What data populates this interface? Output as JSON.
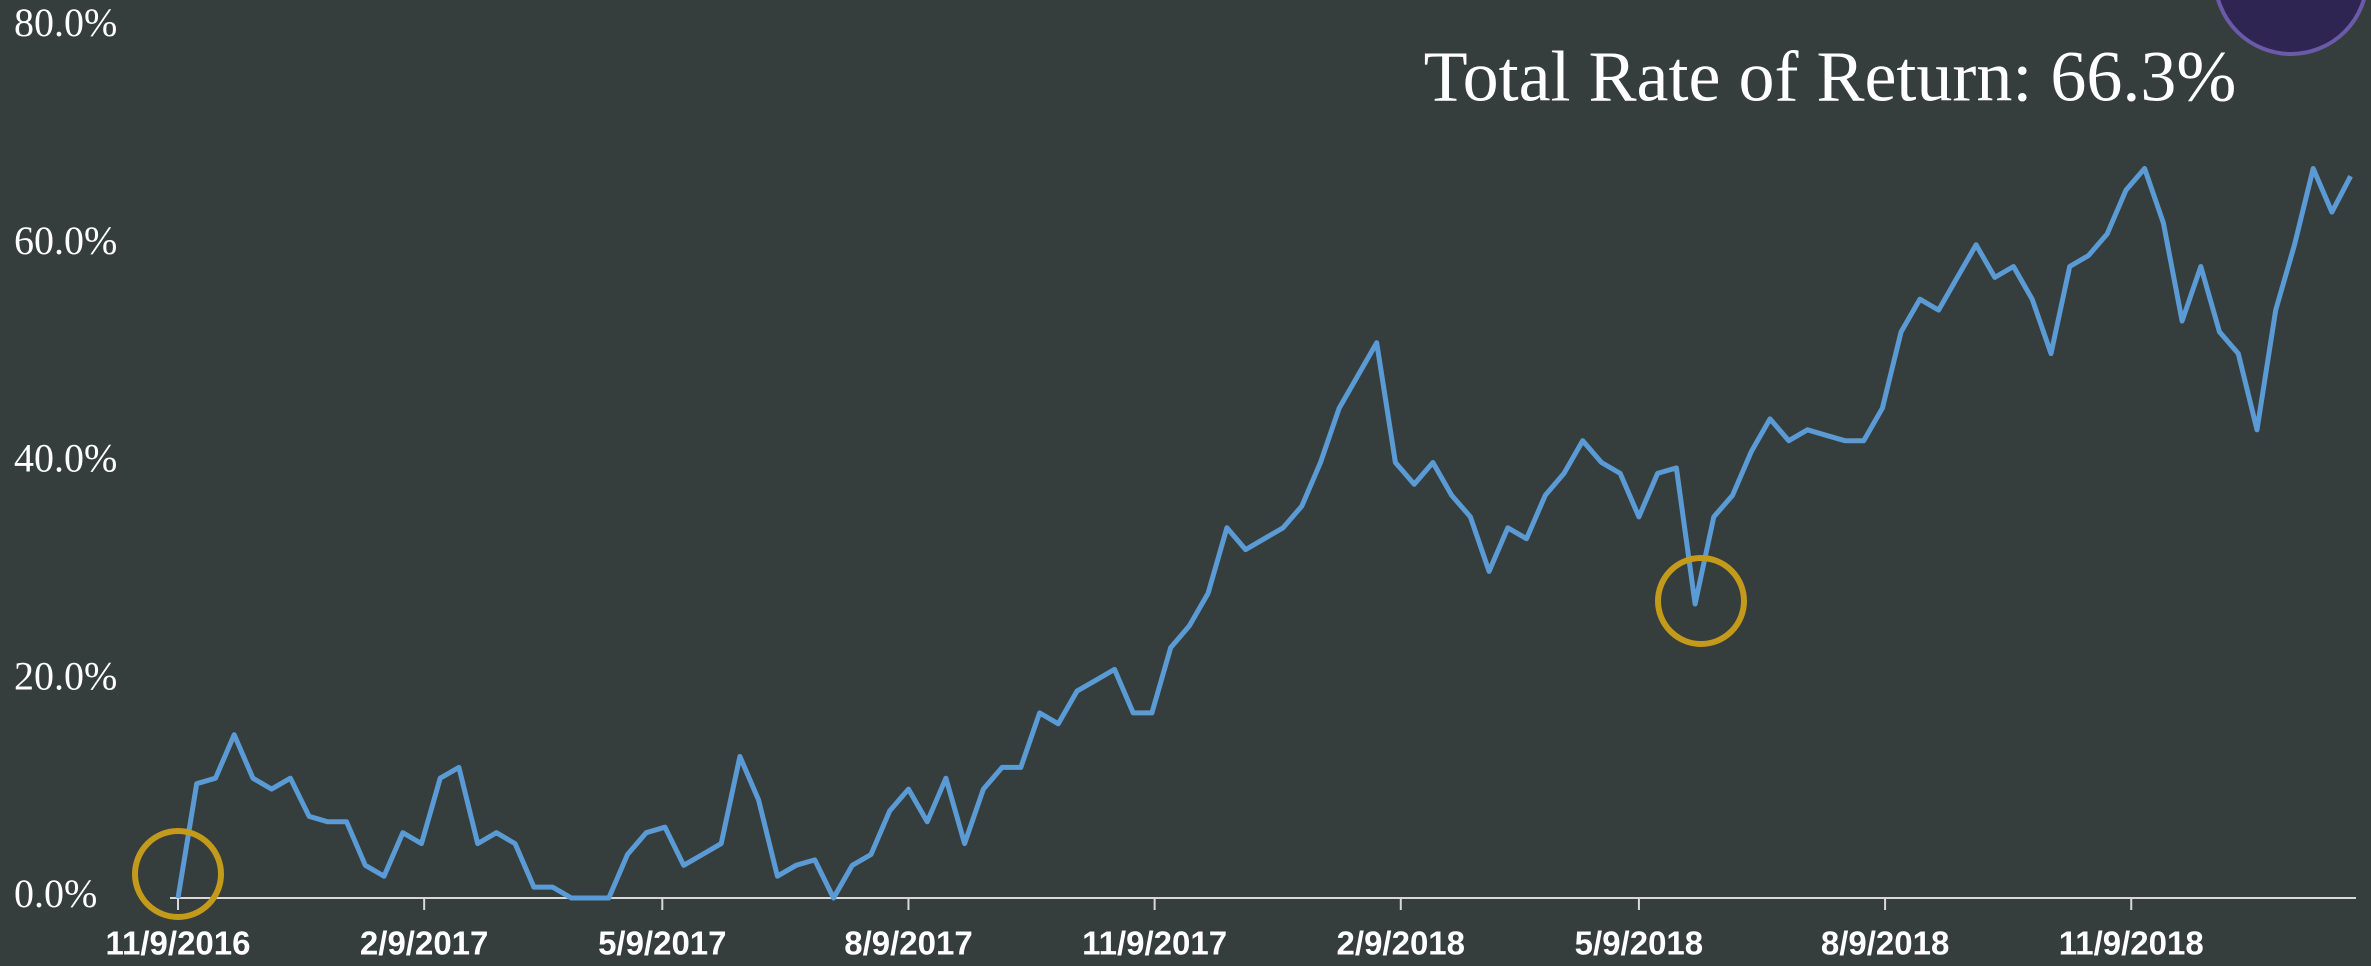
{
  "chart_data": {
    "type": "line",
    "annotation": "Total Rate of Return: 66.3%",
    "x": [
      "11/9/2016",
      "11/16/2016",
      "11/23/2016",
      "11/30/2016",
      "12/7/2016",
      "12/14/2016",
      "12/21/2016",
      "12/28/2016",
      "1/4/2017",
      "1/11/2017",
      "1/18/2017",
      "1/25/2017",
      "2/1/2017",
      "2/8/2017",
      "2/15/2017",
      "2/22/2017",
      "3/1/2017",
      "3/8/2017",
      "3/15/2017",
      "3/22/2017",
      "3/29/2017",
      "4/5/2017",
      "4/12/2017",
      "4/19/2017",
      "4/26/2017",
      "5/3/2017",
      "5/10/2017",
      "5/17/2017",
      "5/24/2017",
      "5/31/2017",
      "6/7/2017",
      "6/14/2017",
      "6/21/2017",
      "6/28/2017",
      "7/5/2017",
      "7/12/2017",
      "7/19/2017",
      "7/26/2017",
      "8/2/2017",
      "8/9/2017",
      "8/16/2017",
      "8/23/2017",
      "8/30/2017",
      "9/6/2017",
      "9/13/2017",
      "9/20/2017",
      "9/27/2017",
      "10/4/2017",
      "10/11/2017",
      "10/18/2017",
      "10/25/2017",
      "11/1/2017",
      "11/8/2017",
      "11/15/2017",
      "11/22/2017",
      "11/29/2017",
      "12/6/2017",
      "12/13/2017",
      "12/20/2017",
      "12/27/2017",
      "1/3/2018",
      "1/10/2018",
      "1/17/2018",
      "1/24/2018",
      "1/31/2018",
      "2/7/2018",
      "2/14/2018",
      "2/21/2018",
      "2/28/2018",
      "3/7/2018",
      "3/14/2018",
      "3/21/2018",
      "3/28/2018",
      "4/4/2018",
      "4/11/2018",
      "4/18/2018",
      "4/25/2018",
      "5/2/2018",
      "5/9/2018",
      "5/16/2018",
      "5/23/2018",
      "5/30/2018",
      "6/6/2018",
      "6/13/2018",
      "6/20/2018",
      "6/27/2018",
      "7/4/2018",
      "7/11/2018",
      "7/18/2018",
      "7/25/2018",
      "8/1/2018",
      "8/8/2018",
      "8/15/2018",
      "8/22/2018",
      "8/29/2018",
      "9/5/2018",
      "9/12/2018",
      "9/19/2018",
      "9/26/2018",
      "10/3/2018",
      "10/10/2018",
      "10/17/2018",
      "10/24/2018",
      "10/31/2018",
      "11/7/2018",
      "11/14/2018",
      "11/21/2018",
      "11/28/2018",
      "12/5/2018",
      "12/12/2018",
      "12/19/2018",
      "12/26/2018",
      "1/2/2019",
      "1/9/2019",
      "1/16/2019",
      "1/23/2019",
      "1/30/2019"
    ],
    "series": [
      {
        "color": "#5b9bd5",
        "values": [
          0,
          10.5,
          11,
          15,
          11,
          10,
          11,
          7.5,
          7,
          7,
          3,
          2,
          6,
          5,
          11,
          12,
          5,
          6,
          5,
          1,
          1,
          0,
          0,
          0,
          4,
          6,
          6.5,
          3,
          4,
          5,
          13,
          9,
          2,
          3,
          3.5,
          0,
          3,
          4,
          8,
          10,
          7,
          11,
          5,
          10,
          12,
          12,
          17,
          16,
          19,
          20,
          21,
          17,
          17,
          23,
          25,
          28,
          34,
          32,
          33,
          34,
          36,
          40,
          45,
          48,
          51,
          40,
          38,
          40,
          37,
          35,
          30,
          34,
          33,
          37,
          39,
          42,
          40,
          39,
          35,
          39,
          39.5,
          27,
          35,
          37,
          41,
          44,
          42,
          43,
          42.5,
          42,
          42,
          45,
          52,
          55,
          54,
          57,
          60,
          57,
          58,
          55,
          50,
          58,
          59,
          61,
          65,
          67,
          62,
          53,
          58,
          52,
          50,
          43,
          54,
          60,
          67,
          63,
          66.3
        ]
      }
    ],
    "xlim": [
      "11/9/2016",
      "2/1/2019"
    ],
    "xticks": [
      "11/9/2016",
      "2/9/2017",
      "5/9/2017",
      "8/9/2017",
      "11/9/2017",
      "2/9/2018",
      "5/9/2018",
      "8/9/2018",
      "11/9/2018"
    ],
    "ylim": [
      0,
      80
    ],
    "yticks": [
      {
        "value": 0,
        "label": "0.0%"
      },
      {
        "value": 20,
        "label": "20.0%"
      },
      {
        "value": 40,
        "label": "40.0%"
      },
      {
        "value": 60,
        "label": "60.0%"
      },
      {
        "value": 80,
        "label": "80.0%"
      }
    ],
    "grid": false
  }
}
